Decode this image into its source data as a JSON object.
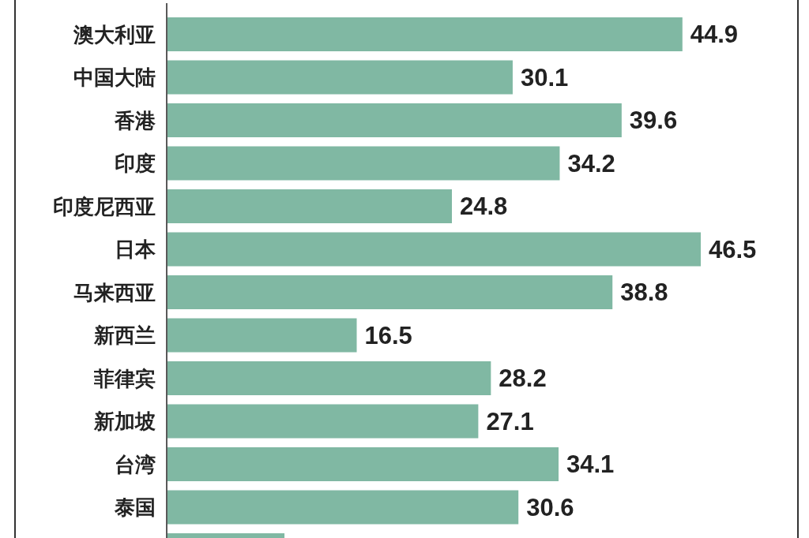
{
  "chart_data": {
    "type": "bar",
    "orientation": "horizontal",
    "categories": [
      "澳大利亚",
      "中国大陆",
      "香港",
      "印度",
      "印度尼西亚",
      "日本",
      "马来西亚",
      "新西兰",
      "菲律宾",
      "新加坡",
      "台湾",
      "泰国",
      null
    ],
    "values": [
      44.9,
      30.1,
      39.6,
      34.2,
      24.8,
      46.5,
      38.8,
      16.5,
      28.2,
      27.1,
      34.1,
      30.6,
      10.2
    ],
    "value_labels": [
      "44.9",
      "30.1",
      "39.6",
      "34.2",
      "24.8",
      "46.5",
      "38.8",
      "16.5",
      "28.2",
      "27.1",
      "34.1",
      "30.6",
      null
    ],
    "color": "#80b8a3",
    "tick_labels": "y"
  }
}
